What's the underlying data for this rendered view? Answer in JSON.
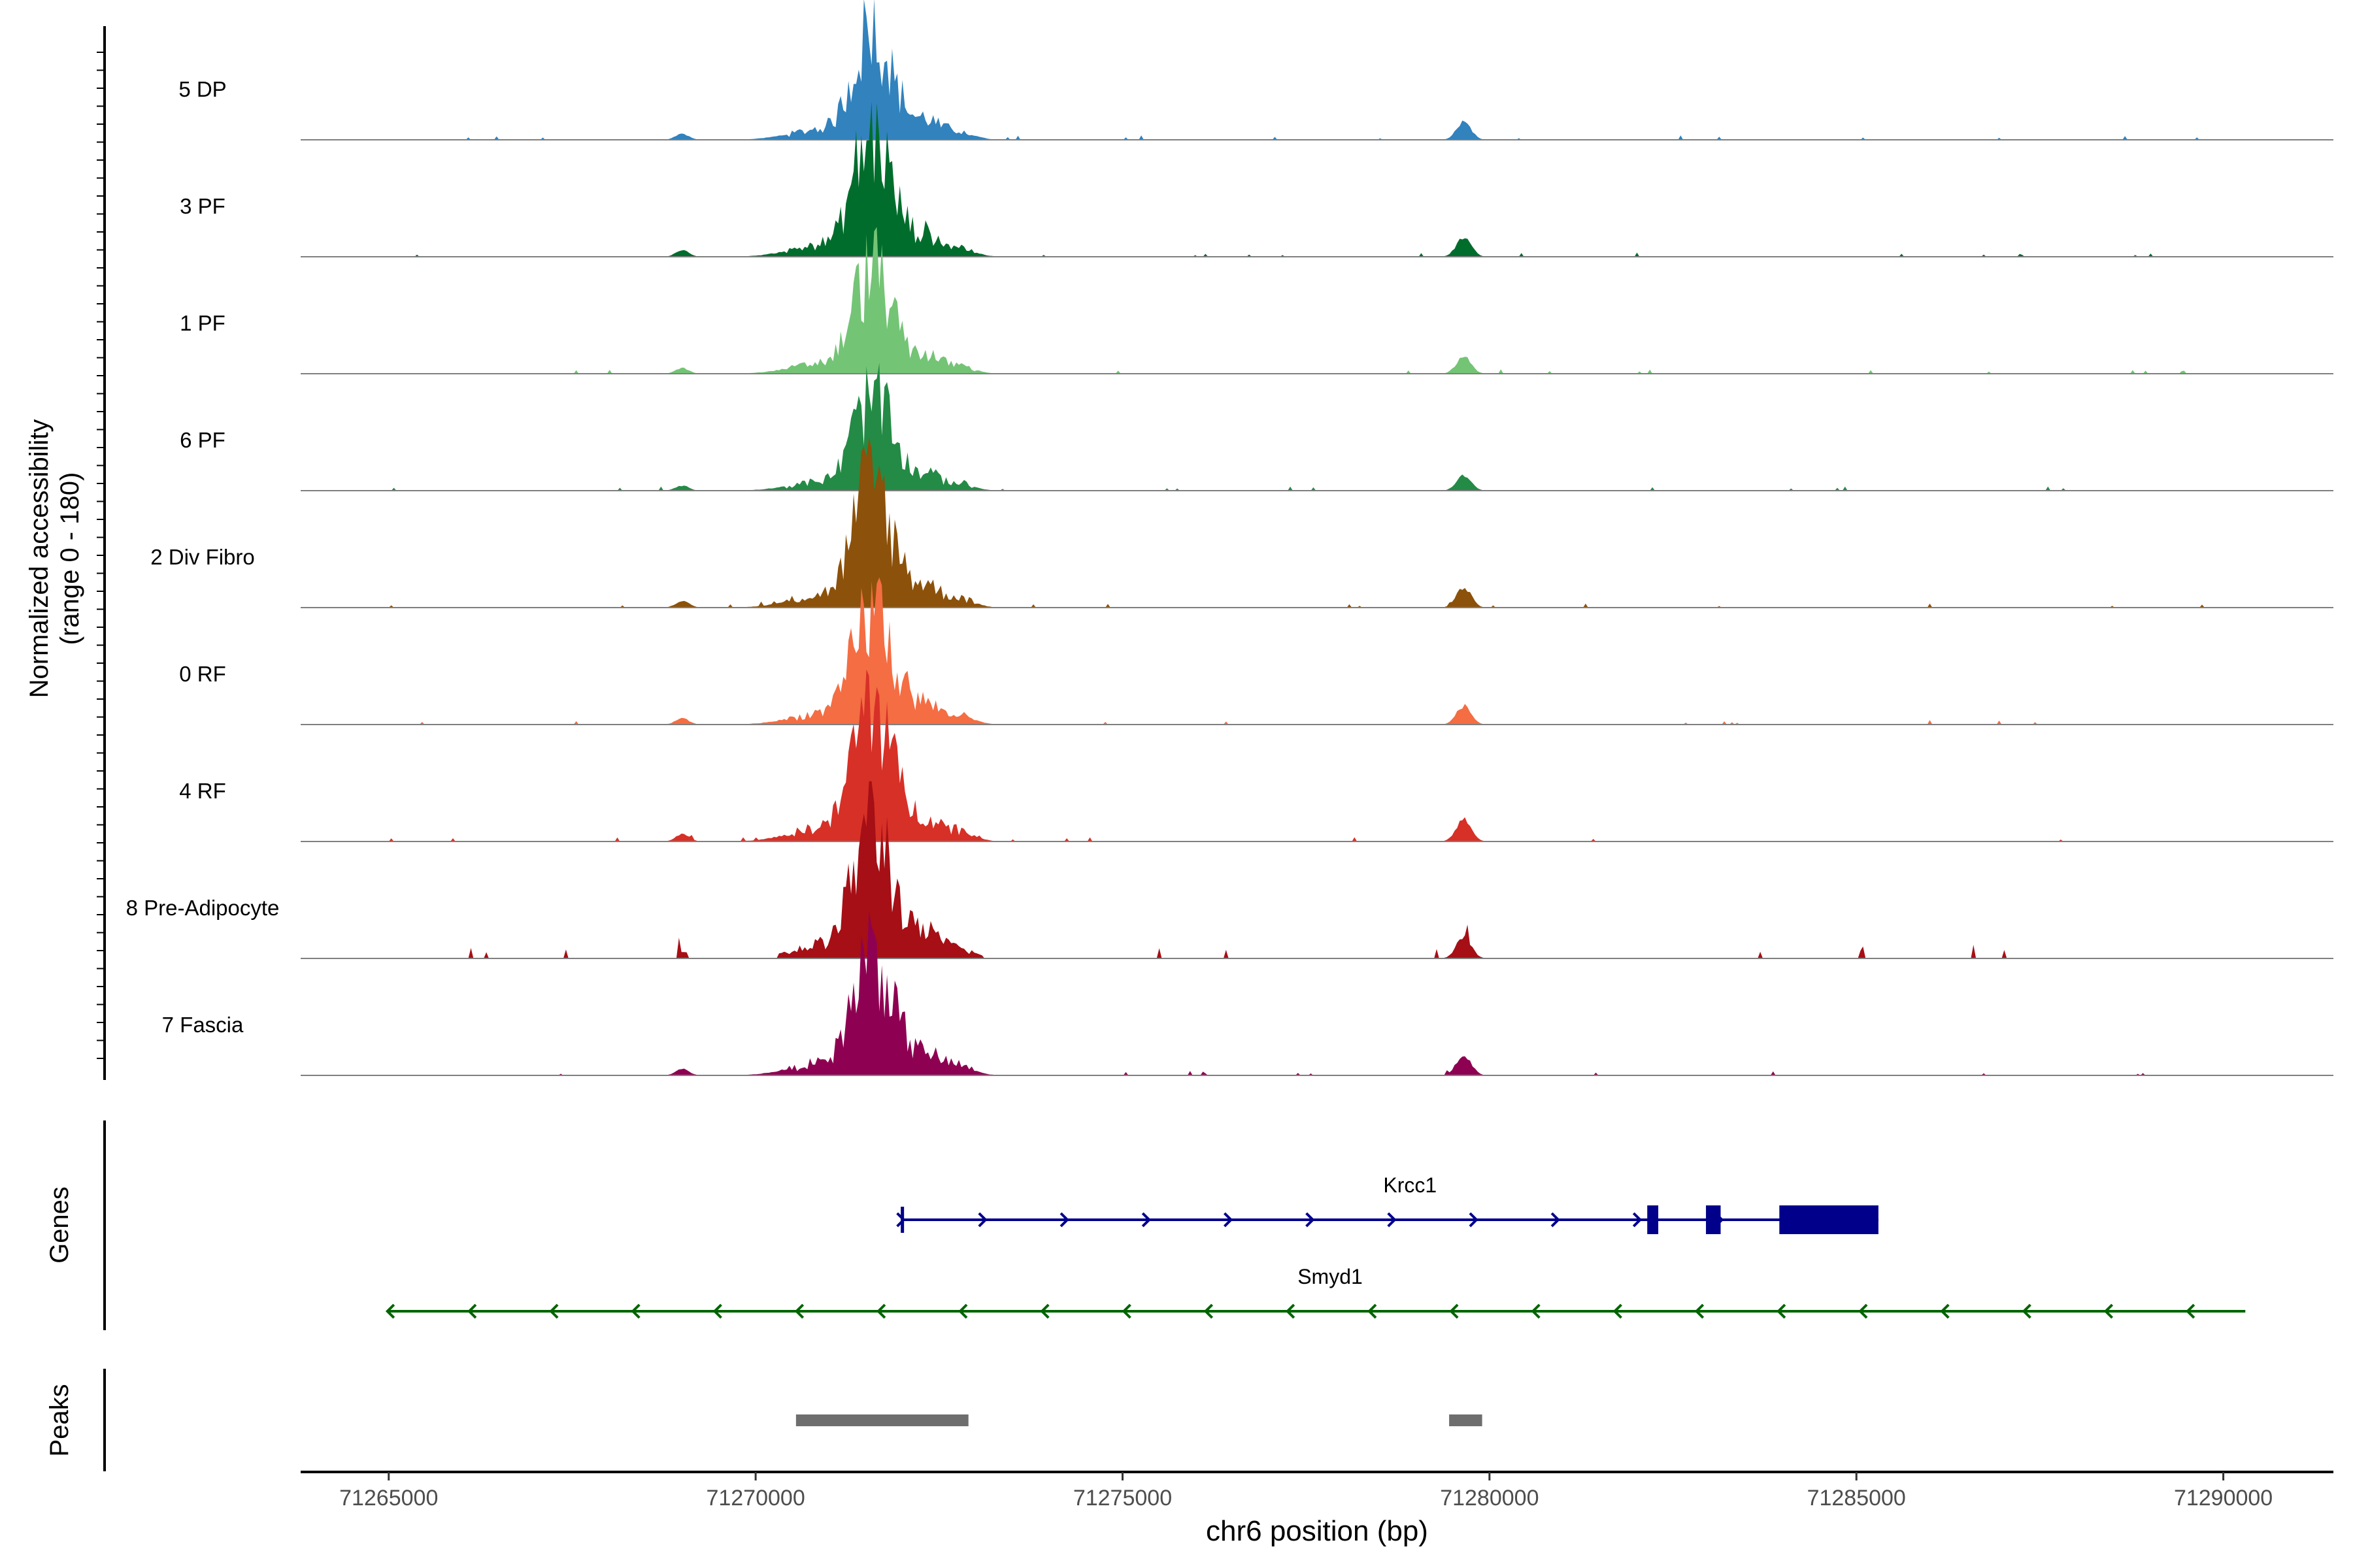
{
  "chart_data": {
    "type": "area",
    "title": "",
    "chromosome": "chr6",
    "xlabel": "chr6 position (bp)",
    "ylabel_line1": "Normalized accessibility",
    "ylabel_line2": "(range 0 - 180)",
    "y_range": [
      0,
      180
    ],
    "xlim": [
      71263800,
      71291500
    ],
    "x_ticks": [
      71265000,
      71270000,
      71275000,
      71280000,
      71285000,
      71290000
    ],
    "x_tick_labels": [
      "71265000",
      "71270000",
      "71275000",
      "71280000",
      "71285000",
      "71290000"
    ],
    "tracks": [
      {
        "name": "5 DP",
        "color": "#3182bd",
        "main_peak": 100,
        "sparse": false
      },
      {
        "name": "3 PF",
        "color": "#006d2c",
        "main_peak": 110,
        "sparse": false
      },
      {
        "name": "1 PF",
        "color": "#74c476",
        "main_peak": 95,
        "sparse": false
      },
      {
        "name": "6 PF",
        "color": "#238b45",
        "main_peak": 85,
        "sparse": false
      },
      {
        "name": "2 Div Fibro",
        "color": "#8c510a",
        "main_peak": 115,
        "sparse": false
      },
      {
        "name": "0 RF",
        "color": "#f46d43",
        "main_peak": 105,
        "sparse": false
      },
      {
        "name": "4 RF",
        "color": "#d73027",
        "main_peak": 130,
        "sparse": false
      },
      {
        "name": "8 Pre-Adipocyte",
        "color": "#a50f15",
        "main_peak": 125,
        "sparse": true
      },
      {
        "name": "7 Fascia",
        "color": "#8e0152",
        "main_peak": 115,
        "sparse": false
      }
    ],
    "genes_label": "Genes",
    "peaks_label": "Peaks",
    "genes": [
      {
        "name": "Krcc1",
        "strand": "+",
        "start": 71272000,
        "end": 71285300,
        "color": "#00008b",
        "exons": [
          [
            71272000,
            71272050
          ],
          [
            71282150,
            71282300
          ],
          [
            71282950,
            71283150
          ],
          [
            71283950,
            71285300
          ]
        ]
      },
      {
        "name": "Smyd1",
        "strand": "-",
        "start": 71265000,
        "end": 71290300,
        "color": "#006400",
        "exons": []
      }
    ],
    "peaks": [
      {
        "start": 71270550,
        "end": 71272900
      },
      {
        "start": 71279450,
        "end": 71279900
      }
    ]
  }
}
